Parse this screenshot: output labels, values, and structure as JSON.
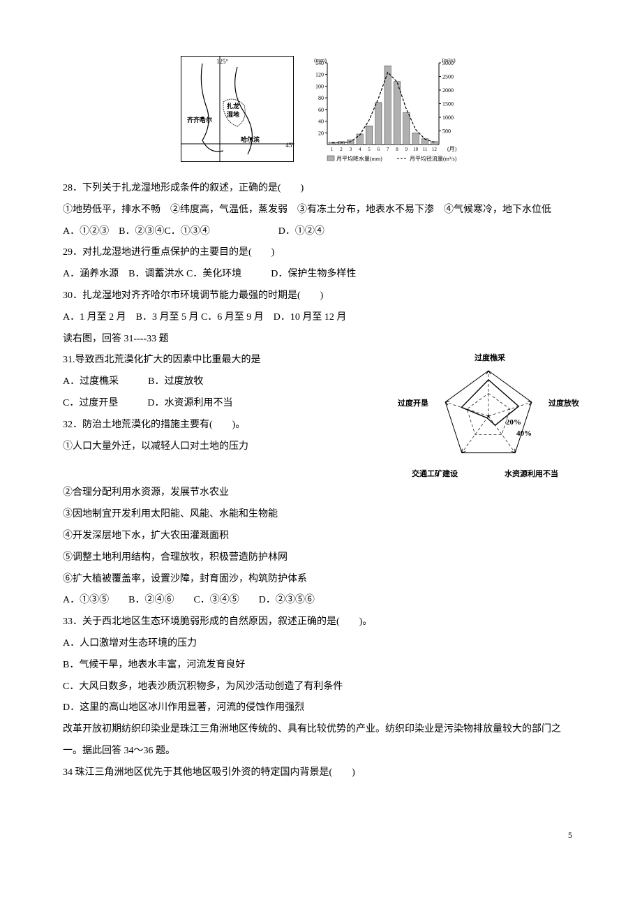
{
  "map": {
    "lon_label": "125°",
    "lat_label": "45°",
    "wetland_l1": "扎龙",
    "wetland_l2": "湿地",
    "city1": "齐齐哈尔",
    "city2": "哈尔滨"
  },
  "precip_chart": {
    "type": "combo_bar_line",
    "x_label": "(月)",
    "y1_label": "(mm)",
    "y2_label": "(m³/s)",
    "y1_max": 140,
    "y1_step": 20,
    "y2_max": 3000,
    "y2_step": 500,
    "months": [
      1,
      2,
      3,
      4,
      5,
      6,
      7,
      8,
      9,
      10,
      11,
      12
    ],
    "precip_mm": [
      4,
      5,
      8,
      18,
      32,
      72,
      135,
      108,
      55,
      20,
      10,
      5
    ],
    "runoff_m3s": [
      60,
      60,
      100,
      350,
      900,
      1700,
      2650,
      2300,
      1300,
      550,
      200,
      80
    ],
    "bar_color": "#b0b0b0",
    "line_style": "dashed",
    "line_color": "#000",
    "legend_bar": "月平均降水量(mm)",
    "legend_line": "月平均径流量(m³/s)",
    "background": "#ffffff",
    "bar_width": 0.7
  },
  "q28": {
    "stem": "28．下列关于扎龙湿地形成条件的叙述，正确的是(　　)",
    "s1": "①地势低平，排水不畅　②纬度高，气温低，蒸发弱　③有冻土分布，地表水不易下渗　④气候寒冷，地下水位低",
    "opts": "A．①②③　B．②③④C．①③④　　　　　　　D．①②④"
  },
  "q29": {
    "stem": "29．对扎龙湿地进行重点保护的主要目的是(　　)",
    "opts": "A．涵养水源　B．调蓄洪水 C．美化环境　　　D．保护生物多样性"
  },
  "q30": {
    "stem": "30．扎龙湿地对齐齐哈尔市环境调节能力最强的时期是(　　)",
    "opts": "A．1 月至 2 月　B．3 月至 5 月 C．6 月至 9 月　D．10 月至 12 月"
  },
  "radar_intro": "读右图，回答 31----33 题",
  "radar": {
    "type": "radar",
    "axes": [
      "过度樵采",
      "过度放牧",
      "水资源利用不当",
      "交通工矿建设",
      "过度开垦"
    ],
    "values_pct": [
      32,
      28,
      10,
      2,
      25
    ],
    "tick_labels": [
      "20%",
      "40%"
    ],
    "outline_color": "#000",
    "grid_style": "dashed"
  },
  "q31": {
    "stem": "31.导致西北荒漠化扩大的因素中比重最大的是",
    "a": "A．过度樵采　　　B．过度放牧",
    "b": "C．过度开垦　　　D．水资源利用不当"
  },
  "q32": {
    "stem": "32．防治土地荒漠化的措施主要有(　　)。",
    "s1": "①人口大量外迁，以减轻人口对土地的压力",
    "s2": "②合理分配利用水资源，发展节水农业",
    "s3": "③因地制宜开发利用太阳能、风能、水能和生物能",
    "s4": "④开发深层地下水，扩大农田灌溉面积",
    "s5": "⑤调整土地利用结构，合理放牧，积极营造防护林网",
    "s6": "⑥扩大植被覆盖率，设置沙障，封育固沙，构筑防护体系",
    "opts": "A．①③⑤　　B．②④⑥　　C．③④⑤　　D．②③⑤⑥"
  },
  "q33": {
    "stem": "33．关于西北地区生态环境脆弱形成的自然原因，叙述正确的是(　　)。",
    "a": "A．人口激增对生态环境的压力",
    "b": "B．气候干旱，地表水丰富，河流发育良好",
    "c": "C．大风日数多，地表沙质沉积物多，为风沙活动创造了有利条件",
    "d": "D．这里的高山地区冰川作用显著，河流的侵蚀作用强烈"
  },
  "intro34": "改革开放初期纺织印染业是珠江三角洲地区传统的、具有比较优势的产业。纺织印染业是污染物排放量较大的部门之一。据此回答 34～36 题。",
  "q34": {
    "stem": "34 珠江三角洲地区优先于其他地区吸引外资的特定国内背景是(　　)"
  },
  "page_number": "5"
}
